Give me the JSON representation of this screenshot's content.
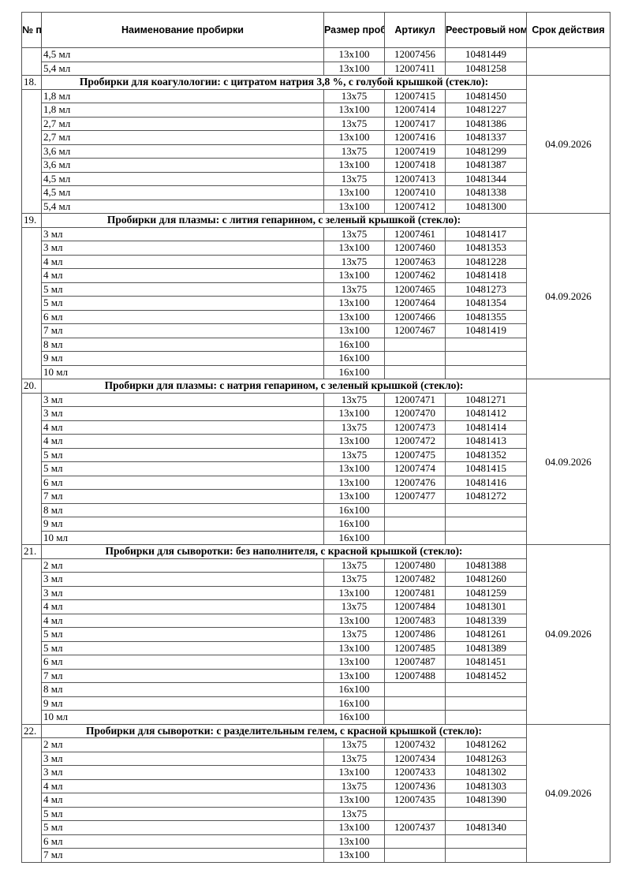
{
  "headers": {
    "num": "№ п/п",
    "name": "Наименование пробирки",
    "size": "Размер пробирки",
    "article": "Артикул",
    "registry": "Реестровый номер",
    "expiry": "Срок действия"
  },
  "continuation": {
    "rows": [
      [
        "4,5 мл",
        "13x100",
        "12007456",
        "10481449"
      ],
      [
        "5,4 мл",
        "13x100",
        "12007411",
        "10481258"
      ]
    ]
  },
  "sections": [
    {
      "num": "18.",
      "title": "Пробирки для коагулологии: с цитратом натрия 3,8 %, с голубой крышкой (стекло):",
      "expiry": "04.09.2026",
      "rows": [
        [
          "1,8 мл",
          "13x75",
          "12007415",
          "10481450"
        ],
        [
          "1,8 мл",
          "13x100",
          "12007414",
          "10481227"
        ],
        [
          "2,7 мл",
          "13x75",
          "12007417",
          "10481386"
        ],
        [
          "2,7 мл",
          "13x100",
          "12007416",
          "10481337"
        ],
        [
          "3,6 мл",
          "13x75",
          "12007419",
          "10481299"
        ],
        [
          "3,6 мл",
          "13x100",
          "12007418",
          "10481387"
        ],
        [
          "4,5 мл",
          "13x75",
          "12007413",
          "10481344"
        ],
        [
          "4,5 мл",
          "13x100",
          "12007410",
          "10481338"
        ],
        [
          "5,4 мл",
          "13x100",
          "12007412",
          "10481300"
        ]
      ]
    },
    {
      "num": "19.",
      "title": "Пробирки для плазмы: с лития гепарином, с зеленый крышкой (стекло):",
      "expiry": "04.09.2026",
      "rows": [
        [
          "3 мл",
          "13x75",
          "12007461",
          "10481417"
        ],
        [
          "3 мл",
          "13x100",
          "12007460",
          "10481353"
        ],
        [
          "4 мл",
          "13x75",
          "12007463",
          "10481228"
        ],
        [
          "4 мл",
          "13x100",
          "12007462",
          "10481418"
        ],
        [
          "5 мл",
          "13x75",
          "12007465",
          "10481273"
        ],
        [
          "5 мл",
          "13x100",
          "12007464",
          "10481354"
        ],
        [
          "6 мл",
          "13x100",
          "12007466",
          "10481355"
        ],
        [
          "7 мл",
          "13x100",
          "12007467",
          "10481419"
        ],
        [
          "8 мл",
          "16x100",
          "",
          ""
        ],
        [
          "9 мл",
          "16x100",
          "",
          ""
        ],
        [
          "10 мл",
          "16x100",
          "",
          ""
        ]
      ]
    },
    {
      "num": "20.",
      "title": "Пробирки для плазмы: с натрия гепарином, с зеленый крышкой (стекло):",
      "expiry": "04.09.2026",
      "rows": [
        [
          "3 мл",
          "13x75",
          "12007471",
          "10481271"
        ],
        [
          "3 мл",
          "13x100",
          "12007470",
          "10481412"
        ],
        [
          "4 мл",
          "13x75",
          "12007473",
          "10481414"
        ],
        [
          "4 мл",
          "13x100",
          "12007472",
          "10481413"
        ],
        [
          "5 мл",
          "13x75",
          "12007475",
          "10481352"
        ],
        [
          "5 мл",
          "13x100",
          "12007474",
          "10481415"
        ],
        [
          "6 мл",
          "13x100",
          "12007476",
          "10481416"
        ],
        [
          "7 мл",
          "13x100",
          "12007477",
          "10481272"
        ],
        [
          "8 мл",
          "16x100",
          "",
          ""
        ],
        [
          "9 мл",
          "16x100",
          "",
          ""
        ],
        [
          "10 мл",
          "16x100",
          "",
          ""
        ]
      ]
    },
    {
      "num": "21.",
      "title": "Пробирки для сыворотки: без наполнителя, с красной крышкой (стекло):",
      "expiry": "04.09.2026",
      "rows": [
        [
          "2 мл",
          "13x75",
          "12007480",
          "10481388"
        ],
        [
          "3 мл",
          "13x75",
          "12007482",
          "10481260"
        ],
        [
          "3 мл",
          "13x100",
          "12007481",
          "10481259"
        ],
        [
          "4 мл",
          "13x75",
          "12007484",
          "10481301"
        ],
        [
          "4 мл",
          "13x100",
          "12007483",
          "10481339"
        ],
        [
          "5 мл",
          "13x75",
          "12007486",
          "10481261"
        ],
        [
          "5 мл",
          "13x100",
          "12007485",
          "10481389"
        ],
        [
          "6 мл",
          "13x100",
          "12007487",
          "10481451"
        ],
        [
          "7 мл",
          "13x100",
          "12007488",
          "10481452"
        ],
        [
          "8 мл",
          "16x100",
          "",
          ""
        ],
        [
          "9 мл",
          "16x100",
          "",
          ""
        ],
        [
          "10 мл",
          "16x100",
          "",
          ""
        ]
      ]
    },
    {
      "num": "22.",
      "title": "Пробирки для сыворотки: с разделительным гелем, с красной крышкой (стекло):",
      "expiry": "04.09.2026",
      "rows": [
        [
          "2 мл",
          "13x75",
          "12007432",
          "10481262"
        ],
        [
          "3 мл",
          "13x75",
          "12007434",
          "10481263"
        ],
        [
          "3 мл",
          "13x100",
          "12007433",
          "10481302"
        ],
        [
          "4 мл",
          "13x75",
          "12007436",
          "10481303"
        ],
        [
          "4 мл",
          "13x100",
          "12007435",
          "10481390"
        ],
        [
          "5 мл",
          "13x75",
          "",
          ""
        ],
        [
          "5 мл",
          "13x100",
          "12007437",
          "10481340"
        ],
        [
          "6 мл",
          "13x100",
          "",
          ""
        ],
        [
          "7 мл",
          "13x100",
          "",
          ""
        ]
      ]
    }
  ]
}
